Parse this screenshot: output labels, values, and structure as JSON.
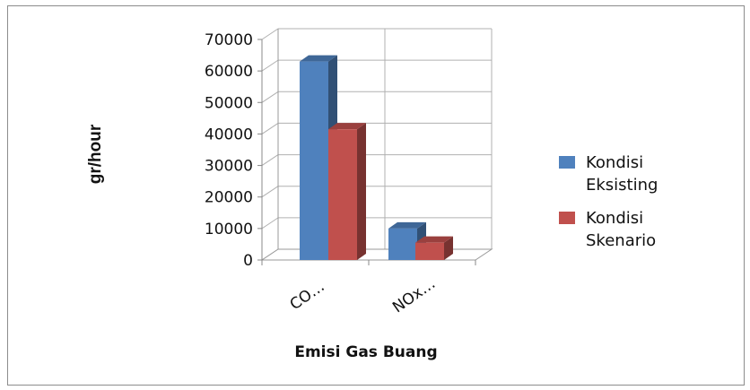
{
  "chart_data": {
    "type": "bar",
    "categories": [
      "CO…",
      "NOx…"
    ],
    "series": [
      {
        "name": "Kondisi Eksisting",
        "values": [
          63000,
          10000
        ],
        "color": "#4F81BD"
      },
      {
        "name": "Kondisi Skenario",
        "values": [
          41500,
          5500
        ],
        "color": "#C0504D"
      }
    ],
    "xlabel": "Emisi Gas Buang",
    "ylabel": "gr/hour",
    "ylim": [
      0,
      70000
    ],
    "yticks": [
      0,
      10000,
      20000,
      30000,
      40000,
      50000,
      60000,
      70000
    ],
    "legend_position": "right",
    "grid": true
  },
  "legend": {
    "item1_line1": "Kondisi",
    "item1_line2": "Eksisting",
    "item2_line1": "Kondisi",
    "item2_line2": "Skenario"
  }
}
